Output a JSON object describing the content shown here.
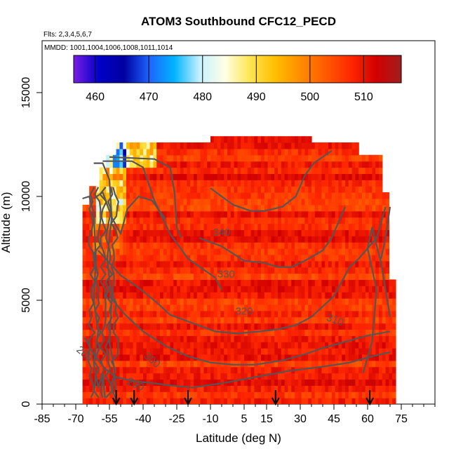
{
  "chart_data": {
    "type": "heatmap",
    "title": "ATOM3 Southbound CFC12_PECD",
    "flights_note": "Flts: 2,3,4,5,6,7",
    "dates_note": "MMDD: 1001,1004,1006,1008,1011,1014",
    "xlabel": "Latitude (deg N)",
    "ylabel": "Altitude (m)",
    "xlim": [
      -85,
      90
    ],
    "ylim": [
      0,
      17500
    ],
    "xticks": [
      -85,
      -70,
      -55,
      -40,
      -25,
      -10,
      5,
      15,
      30,
      45,
      60,
      75
    ],
    "yticks": [
      0,
      5000,
      10000,
      15000
    ],
    "colorbar": {
      "min": 456,
      "max": 517,
      "ticks": [
        460,
        470,
        480,
        490,
        500,
        510
      ],
      "colors": [
        "#7a1ee6",
        "#0000c8",
        "#0000a0",
        "#1e64ff",
        "#00b4ff",
        "#c8f0ff",
        "#ffffe6",
        "#ffe650",
        "#ffbe00",
        "#ff8c00",
        "#ff5a00",
        "#ff2800",
        "#d20000",
        "#a01e1e"
      ]
    },
    "data_extent": {
      "lat_range": [
        -67,
        72
      ],
      "alt_range": [
        0,
        12900
      ]
    },
    "field_description": "CFC-12 mostly 500-512 throughout troposphere; lower values (470-495) near Antarctic tropopause around -60 to -45 deg N, 9000-12300 m",
    "potential_temperature_contours": [
      {
        "label": "280",
        "level": 280
      },
      {
        "label": "290",
        "level": 290
      },
      {
        "label": "300",
        "level": 300
      },
      {
        "label": "310",
        "level": 310
      },
      {
        "label": "320",
        "level": 320
      },
      {
        "label": "330",
        "level": 330
      },
      {
        "label": "340",
        "level": 340
      }
    ],
    "profile_arrows_lat": [
      -52,
      -44,
      -20,
      19,
      61
    ]
  }
}
